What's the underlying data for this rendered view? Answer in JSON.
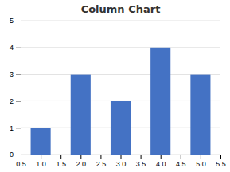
{
  "chart_data": {
    "type": "bar",
    "title": "Column Chart",
    "x": [
      1.0,
      2.0,
      3.0,
      4.0,
      5.0
    ],
    "values": [
      1,
      3,
      2,
      4,
      3
    ],
    "color": "#4472C4",
    "xlim": [
      0.5,
      5.5
    ],
    "xticks": [
      0.5,
      {
        "value": 1.0,
        "label": "1.0"
      },
      1.5,
      {
        "value": 2.0,
        "label": "2.0"
      },
      2.5,
      {
        "value": 3.0,
        "label": "3.0"
      },
      3.5,
      {
        "value": 4.0,
        "label": "4.0"
      },
      4.5,
      {
        "value": 5.0,
        "label": "5.0"
      },
      5.5
    ],
    "ylim": [
      0,
      5
    ],
    "yticks": [
      0,
      1,
      2,
      3,
      4,
      5
    ],
    "grid": true
  }
}
